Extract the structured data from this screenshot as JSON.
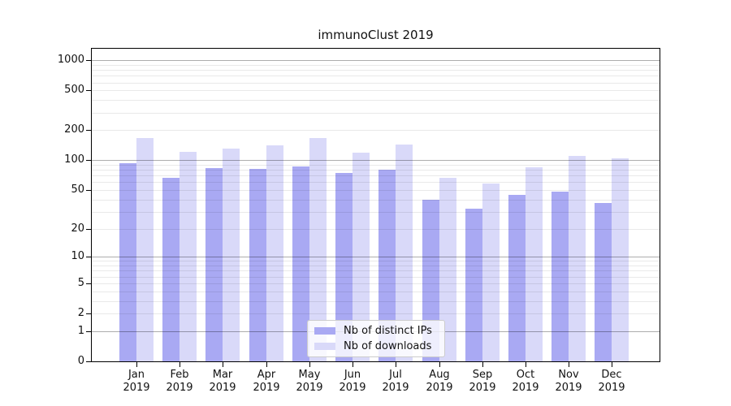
{
  "title": "immunoClust 2019",
  "chart_data": {
    "type": "bar",
    "title": "immunoClust 2019",
    "categories": [
      "Jan",
      "Feb",
      "Mar",
      "Apr",
      "May",
      "Jun",
      "Jul",
      "Aug",
      "Sep",
      "Oct",
      "Nov",
      "Dec"
    ],
    "year_label": "2019",
    "series": [
      {
        "name": "Nb of distinct IPs",
        "color": "#a9a9f3",
        "values": [
          93,
          67,
          84,
          82,
          86,
          74,
          80,
          40,
          32,
          45,
          48,
          37
        ]
      },
      {
        "name": "Nb of downloads",
        "color": "#d9d9f9",
        "values": [
          167,
          122,
          131,
          141,
          167,
          119,
          144,
          66,
          58,
          85,
          110,
          105
        ]
      }
    ],
    "y_scale": "log1p",
    "ylim": [
      0,
      1300
    ],
    "y_ticks": [
      1000,
      500,
      200,
      100,
      50,
      20,
      10,
      5,
      2,
      1,
      0
    ],
    "y_major_gridlines": [
      1,
      10,
      100,
      1000
    ],
    "y_minor_gridlines": [
      2,
      3,
      4,
      5,
      6,
      7,
      8,
      9,
      20,
      30,
      40,
      50,
      60,
      70,
      80,
      90,
      200,
      300,
      400,
      500,
      600,
      700,
      800,
      900
    ],
    "grid": true,
    "legend": {
      "position": "inside-bottom-center",
      "items": [
        "Nb of distinct IPs",
        "Nb of downloads"
      ]
    },
    "colors": {
      "axis": "#000000",
      "major_grid": "#b0b0b0",
      "minor_grid": "#e9e9e9",
      "text": "#111111",
      "background": "#ffffff"
    }
  }
}
